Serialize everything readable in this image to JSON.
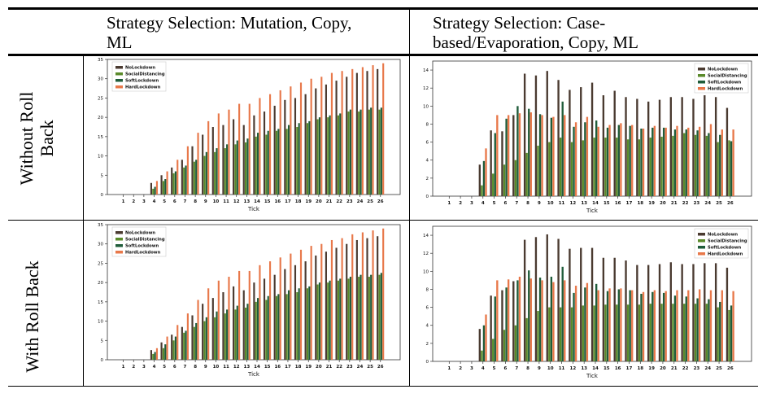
{
  "table": {
    "col_headers": [
      "Strategy Selection: Mutation, Copy, ML",
      "Strategy Selection: Case-based/Evaporation, Copy, ML"
    ],
    "col_header_lines": [
      [
        "Strategy Selection: Mutation, Copy,",
        "ML"
      ],
      [
        "Strategy Selection: Case-",
        "based/Evaporation, Copy, ML"
      ]
    ],
    "row_headers": [
      "Without Roll Back",
      "With Roll Back"
    ],
    "row_header_lines": [
      [
        "Without Roll",
        "Back"
      ],
      [
        "With Roll Back"
      ]
    ]
  },
  "colors": {
    "NoLockdown": "#4a3a30",
    "SocialDistancing": "#5a8a2a",
    "SoftLockdown": "#1f5c3a",
    "HardLockdown": "#e8784a"
  },
  "chart_data": [
    {
      "id": "mutation-without-rollback",
      "type": "bar",
      "xlabel": "Tick",
      "ylabel": "",
      "ylim": [
        0,
        35
      ],
      "yticks": [
        0,
        5,
        10,
        15,
        20,
        25,
        30,
        35
      ],
      "categories": [
        "1",
        "2",
        "3",
        "4",
        "5",
        "6",
        "7",
        "8",
        "9",
        "10",
        "11",
        "12",
        "13",
        "14",
        "15",
        "16",
        "17",
        "18",
        "19",
        "20",
        "21",
        "22",
        "23",
        "24",
        "25",
        "26"
      ],
      "legend": "top-left",
      "series": [
        {
          "name": "NoLockdown",
          "values": [
            0,
            0,
            0,
            3.0,
            5.0,
            7.0,
            9.0,
            12.5,
            15.5,
            17.5,
            18.0,
            19.5,
            18.0,
            20.5,
            21.5,
            23.0,
            24.5,
            25.0,
            26.0,
            27.5,
            28.5,
            29.5,
            30.5,
            31.5,
            32.0,
            32.5
          ]
        },
        {
          "name": "SocialDistancing",
          "values": [
            0,
            0,
            0,
            1.5,
            3.5,
            5.5,
            7.0,
            8.5,
            10.0,
            11.0,
            12.0,
            13.0,
            13.5,
            15.0,
            15.5,
            16.5,
            17.0,
            17.5,
            18.5,
            19.5,
            20.0,
            20.5,
            21.5,
            21.5,
            22.0,
            22.0
          ]
        },
        {
          "name": "SoftLockdown",
          "values": [
            0,
            0,
            0,
            2.0,
            4.0,
            6.0,
            7.5,
            9.0,
            11.0,
            12.0,
            13.0,
            14.0,
            14.5,
            16.0,
            16.5,
            17.0,
            18.0,
            18.5,
            19.0,
            20.0,
            20.5,
            21.0,
            22.0,
            22.0,
            22.5,
            22.5
          ]
        },
        {
          "name": "HardLockdown",
          "values": [
            0,
            0,
            0,
            3.5,
            6.0,
            9.0,
            12.5,
            16.0,
            19.0,
            21.0,
            22.0,
            23.5,
            23.5,
            25.0,
            26.0,
            27.0,
            28.0,
            29.0,
            30.0,
            30.5,
            31.5,
            32.0,
            32.5,
            33.0,
            33.5,
            34.0
          ]
        }
      ]
    },
    {
      "id": "casebased-without-rollback",
      "type": "bar",
      "xlabel": "Tick",
      "ylabel": "",
      "ylim": [
        0,
        15
      ],
      "yticks": [
        0,
        2,
        4,
        6,
        8,
        10,
        12,
        14
      ],
      "categories": [
        "1",
        "2",
        "3",
        "4",
        "5",
        "6",
        "7",
        "8",
        "9",
        "10",
        "11",
        "12",
        "13",
        "14",
        "15",
        "16",
        "17",
        "18",
        "19",
        "20",
        "21",
        "22",
        "23",
        "24",
        "25",
        "26"
      ],
      "legend": "top-right",
      "series": [
        {
          "name": "NoLockdown",
          "values": [
            0,
            0,
            0,
            3.5,
            7.3,
            7.2,
            9.0,
            13.6,
            13.4,
            13.9,
            12.9,
            11.8,
            12.1,
            12.6,
            11.2,
            11.7,
            11.0,
            10.8,
            10.5,
            10.7,
            11.0,
            11.0,
            10.8,
            11.2,
            11.0,
            9.8
          ]
        },
        {
          "name": "SocialDistancing",
          "values": [
            0,
            0,
            0,
            1.2,
            2.5,
            3.5,
            4.0,
            4.8,
            5.6,
            6.0,
            6.5,
            6.0,
            6.2,
            6.5,
            6.5,
            6.5,
            6.3,
            6.3,
            6.5,
            6.6,
            6.7,
            7.0,
            6.8,
            6.7,
            6.0,
            6.2
          ]
        },
        {
          "name": "SoftLockdown",
          "values": [
            0,
            0,
            0,
            3.9,
            7.0,
            8.6,
            10.0,
            9.7,
            9.1,
            8.7,
            10.5,
            7.7,
            8.2,
            8.4,
            7.6,
            7.9,
            7.8,
            7.5,
            7.6,
            7.6,
            7.4,
            7.4,
            7.3,
            7.0,
            6.8,
            6.1
          ]
        },
        {
          "name": "HardLockdown",
          "values": [
            0,
            0,
            0,
            5.3,
            9.0,
            9.0,
            9.2,
            9.3,
            9.0,
            8.8,
            9.0,
            8.2,
            8.8,
            7.7,
            7.9,
            8.1,
            7.9,
            7.5,
            7.8,
            7.6,
            7.8,
            7.6,
            7.7,
            8.0,
            7.4,
            7.4
          ]
        }
      ]
    },
    {
      "id": "mutation-with-rollback",
      "type": "bar",
      "xlabel": "Tick",
      "ylabel": "",
      "ylim": [
        0,
        35
      ],
      "yticks": [
        0,
        5,
        10,
        15,
        20,
        25,
        30,
        35
      ],
      "categories": [
        "1",
        "2",
        "3",
        "4",
        "5",
        "6",
        "7",
        "8",
        "9",
        "10",
        "11",
        "12",
        "13",
        "14",
        "15",
        "16",
        "17",
        "18",
        "19",
        "20",
        "21",
        "22",
        "23",
        "24",
        "25",
        "26"
      ],
      "legend": "top-left",
      "series": [
        {
          "name": "NoLockdown",
          "values": [
            0,
            0,
            0,
            2.5,
            4.5,
            6.5,
            8.5,
            11.5,
            14.5,
            16.0,
            17.5,
            19.0,
            18.0,
            20.0,
            21.0,
            22.0,
            23.5,
            24.5,
            25.5,
            27.0,
            28.0,
            29.0,
            30.0,
            31.0,
            31.5,
            32.0
          ]
        },
        {
          "name": "SocialDistancing",
          "values": [
            0,
            0,
            0,
            1.5,
            3.0,
            5.0,
            7.0,
            8.5,
            10.0,
            11.0,
            12.0,
            13.0,
            13.5,
            15.0,
            15.5,
            16.5,
            17.0,
            17.5,
            18.5,
            19.5,
            20.0,
            20.5,
            21.0,
            21.5,
            21.5,
            22.0
          ]
        },
        {
          "name": "SoftLockdown",
          "values": [
            0,
            0,
            0,
            2.0,
            4.0,
            6.0,
            7.5,
            9.5,
            11.0,
            12.5,
            13.0,
            14.0,
            14.5,
            16.0,
            16.5,
            17.0,
            18.0,
            18.5,
            19.0,
            20.0,
            20.5,
            21.0,
            21.5,
            22.0,
            22.0,
            22.5
          ]
        },
        {
          "name": "HardLockdown",
          "values": [
            0,
            0,
            0,
            3.0,
            6.0,
            9.0,
            12.0,
            15.5,
            18.5,
            20.5,
            21.5,
            23.0,
            23.0,
            24.5,
            25.5,
            26.5,
            27.5,
            28.5,
            29.5,
            30.0,
            31.0,
            31.5,
            32.5,
            33.0,
            33.5,
            34.0
          ]
        }
      ]
    },
    {
      "id": "casebased-with-rollback",
      "type": "bar",
      "xlabel": "Tick",
      "ylabel": "",
      "ylim": [
        0,
        15
      ],
      "yticks": [
        0,
        2,
        4,
        6,
        8,
        10,
        12,
        14
      ],
      "categories": [
        "1",
        "2",
        "3",
        "4",
        "5",
        "6",
        "7",
        "8",
        "9",
        "10",
        "11",
        "12",
        "13",
        "14",
        "15",
        "16",
        "17",
        "18",
        "19",
        "20",
        "21",
        "22",
        "23",
        "24",
        "25",
        "26"
      ],
      "legend": "top-right",
      "series": [
        {
          "name": "NoLockdown",
          "values": [
            0,
            0,
            0,
            3.6,
            7.3,
            7.9,
            8.9,
            13.5,
            13.8,
            14.1,
            13.6,
            12.5,
            12.6,
            12.6,
            11.5,
            11.5,
            11.2,
            10.7,
            10.7,
            10.8,
            11.0,
            10.8,
            10.8,
            10.9,
            10.9,
            10.4
          ]
        },
        {
          "name": "SocialDistancing",
          "values": [
            0,
            0,
            0,
            1.2,
            2.5,
            3.5,
            4.0,
            4.8,
            5.6,
            6.0,
            6.0,
            6.0,
            6.2,
            6.2,
            6.3,
            6.3,
            6.3,
            6.3,
            6.4,
            6.4,
            6.4,
            6.4,
            6.4,
            6.4,
            6.0,
            5.7
          ]
        },
        {
          "name": "SoftLockdown",
          "values": [
            0,
            0,
            0,
            4.0,
            7.2,
            8.2,
            9.0,
            10.1,
            9.3,
            9.4,
            10.5,
            7.6,
            8.2,
            8.6,
            7.8,
            8.0,
            7.9,
            7.5,
            7.7,
            7.6,
            7.3,
            7.2,
            7.0,
            6.9,
            6.6,
            6.2
          ]
        },
        {
          "name": "HardLockdown",
          "values": [
            0,
            0,
            0,
            5.2,
            9.0,
            9.1,
            9.4,
            9.2,
            9.0,
            8.8,
            9.0,
            8.4,
            8.7,
            7.9,
            8.1,
            8.1,
            7.9,
            7.7,
            7.9,
            7.8,
            7.9,
            7.9,
            8.0,
            7.9,
            7.9,
            7.8
          ]
        }
      ]
    }
  ]
}
